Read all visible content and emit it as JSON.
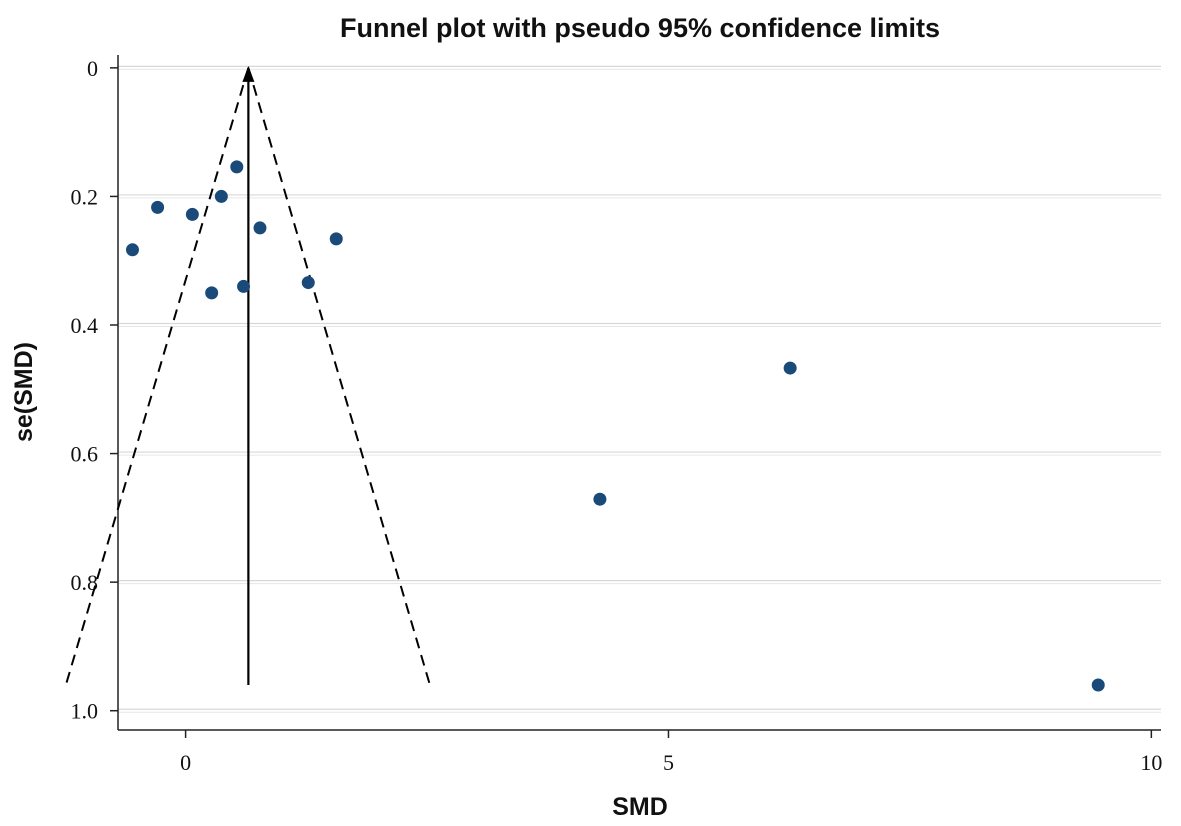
{
  "chart_data": {
    "type": "scatter",
    "title": "Funnel plot with pseudo 95% confidence limits",
    "xlabel": "SMD",
    "ylabel": "se(SMD)",
    "xlim": [
      -0.7,
      10.1
    ],
    "ylim": [
      1.03,
      -0.02
    ],
    "y_reversed": true,
    "xticks": [
      0,
      5,
      10
    ],
    "xtick_labels": [
      "0",
      "5",
      "10"
    ],
    "yticks": [
      0,
      0.2,
      0.4,
      0.6,
      0.8,
      1.0
    ],
    "ytick_labels": [
      "0",
      "0.2",
      "0.4",
      "0.6",
      "0.8",
      "1.0"
    ],
    "grid": true,
    "legend": "none",
    "point_color": "#1a4a7a",
    "pooled_estimate": 0.65,
    "funnel_se_max": 0.96,
    "funnel_lower_at_max": -1.24,
    "funnel_upper_at_max": 2.53,
    "points": [
      {
        "x": 0.53,
        "y": 0.154
      },
      {
        "x": 0.37,
        "y": 0.2
      },
      {
        "x": -0.29,
        "y": 0.217
      },
      {
        "x": 0.07,
        "y": 0.228
      },
      {
        "x": 0.77,
        "y": 0.249
      },
      {
        "x": 1.56,
        "y": 0.266
      },
      {
        "x": -0.55,
        "y": 0.283
      },
      {
        "x": 1.27,
        "y": 0.334
      },
      {
        "x": 0.6,
        "y": 0.34
      },
      {
        "x": 0.27,
        "y": 0.35
      },
      {
        "x": 6.26,
        "y": 0.467
      },
      {
        "x": 4.29,
        "y": 0.671
      },
      {
        "x": 9.45,
        "y": 0.96
      }
    ]
  }
}
